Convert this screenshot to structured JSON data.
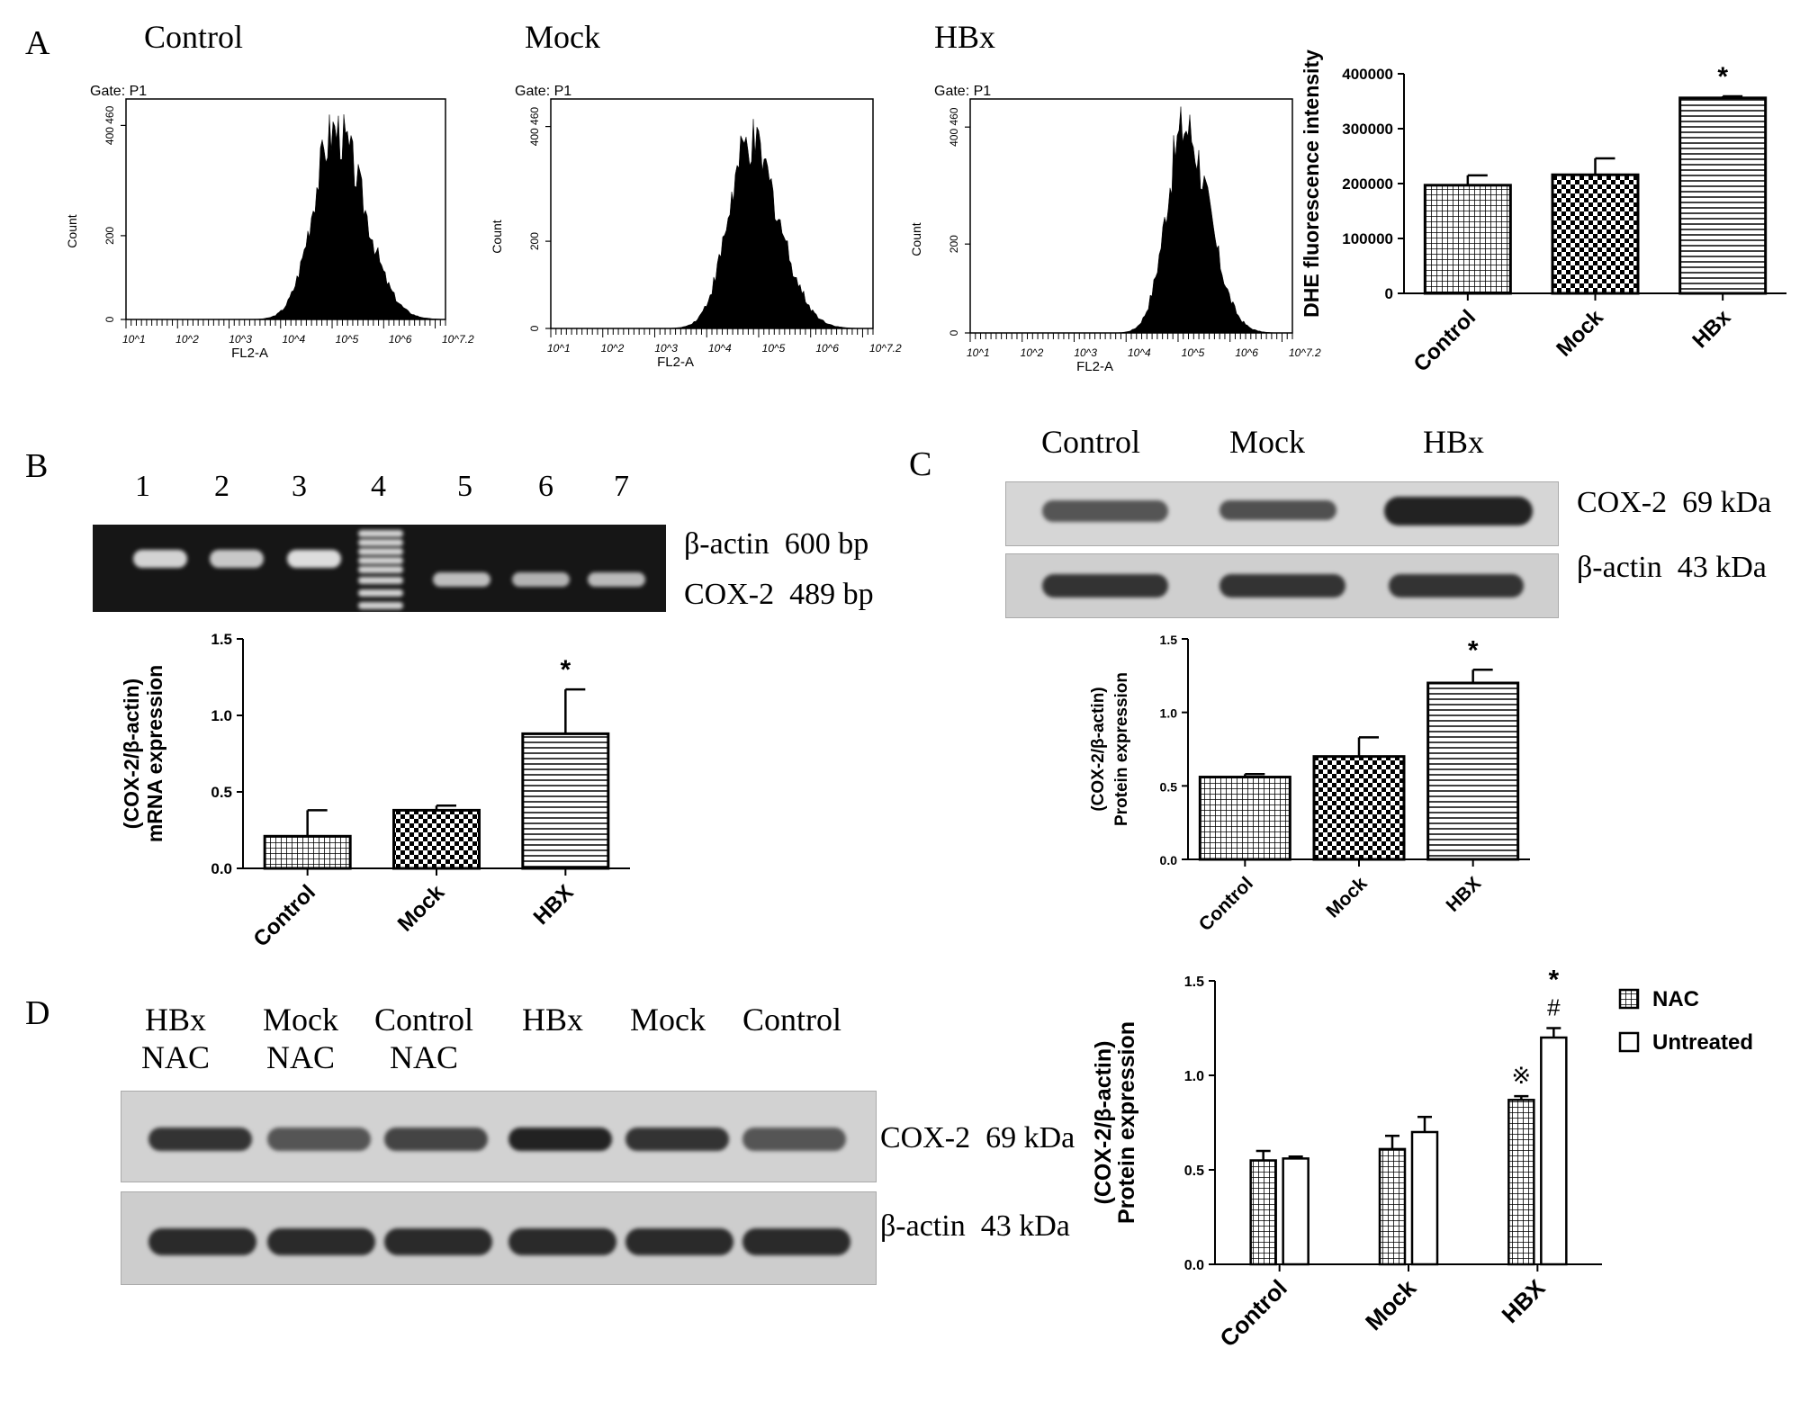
{
  "colors": {
    "ink": "#000000",
    "gel_bg": "#1a1a1a",
    "band_dark": "#2a2a2a",
    "blot_bg": "#d4d4d4"
  },
  "panel_a": {
    "letter": "A",
    "histograms": [
      {
        "condition": "Control",
        "gate": "Gate: P1",
        "xlabel": "FL2-A",
        "ylabel": "Count"
      },
      {
        "condition": "Mock",
        "gate": "Gate: P1",
        "xlabel": "FL2-A",
        "ylabel": "Count"
      },
      {
        "condition": "HBx",
        "gate": "Gate: P1",
        "xlabel": "FL2-A",
        "ylabel": "Count"
      }
    ],
    "hist_yticks": [
      "0",
      "200",
      "400 460"
    ],
    "hist_xticks": [
      "10^1",
      "10^2",
      "10^3",
      "10^4",
      "10^5",
      "10^6",
      "10^7.2"
    ]
  },
  "panel_b": {
    "letter": "B",
    "lanes": [
      "1",
      "2",
      "3",
      "4",
      "5",
      "6",
      "7"
    ],
    "band_labels": [
      {
        "name": "β-actin",
        "size": "600 bp"
      },
      {
        "name": "COX-2",
        "size": "489 bp"
      }
    ]
  },
  "panel_c": {
    "letter": "C",
    "lanes": [
      "Control",
      "Mock",
      "HBx"
    ],
    "band_labels": [
      {
        "name": "COX-2",
        "size": "69 kDa"
      },
      {
        "name": "β-actin",
        "size": "43 kDa"
      }
    ]
  },
  "panel_d": {
    "letter": "D",
    "lanes": [
      {
        "line1": "HBx",
        "line2": "NAC"
      },
      {
        "line1": "Mock",
        "line2": "NAC"
      },
      {
        "line1": "Control",
        "line2": "NAC"
      },
      {
        "line1": "HBx",
        "line2": ""
      },
      {
        "line1": "Mock",
        "line2": ""
      },
      {
        "line1": "Control",
        "line2": ""
      }
    ],
    "band_labels": [
      {
        "name": "COX-2",
        "size": "69 kDa"
      },
      {
        "name": "β-actin",
        "size": "43 kDa"
      }
    ]
  },
  "chart_data": [
    {
      "id": "dhe",
      "type": "bar",
      "ylabel": "DHE fluorescence intensity",
      "categories": [
        "Control",
        "Mock",
        "HBx"
      ],
      "values": [
        197000,
        216000,
        356000
      ],
      "errors": [
        18000,
        30000,
        3000
      ],
      "patterns": [
        "grid",
        "checker",
        "hlines"
      ],
      "sig": [
        "",
        "",
        "*"
      ],
      "ylim": [
        0,
        400000
      ],
      "yticks": [
        0,
        100000,
        200000,
        300000,
        400000
      ]
    },
    {
      "id": "mrna",
      "type": "bar",
      "ylabel": [
        "mRNA expression",
        "(COX-2/β-actin)"
      ],
      "categories": [
        "Control",
        "Mock",
        "HBX"
      ],
      "values": [
        0.21,
        0.38,
        0.88
      ],
      "errors": [
        0.17,
        0.03,
        0.29
      ],
      "patterns": [
        "grid",
        "checker",
        "hlines"
      ],
      "sig": [
        "",
        "",
        "*"
      ],
      "ylim": [
        0,
        1.5
      ],
      "yticks": [
        "0.0",
        "0.5",
        "1.0",
        "1.5"
      ]
    },
    {
      "id": "protein_c",
      "type": "bar",
      "ylabel": [
        "Protein expression",
        "(COX-2/β-actin)"
      ],
      "categories": [
        "Control",
        "Mock",
        "HBX"
      ],
      "values": [
        0.56,
        0.7,
        1.2
      ],
      "errors": [
        0.02,
        0.13,
        0.09
      ],
      "patterns": [
        "grid",
        "checker",
        "hlines"
      ],
      "sig": [
        "",
        "",
        "*"
      ],
      "ylim": [
        0,
        1.5
      ],
      "yticks": [
        "0.0",
        "0.5",
        "1.0",
        "1.5"
      ]
    },
    {
      "id": "protein_d",
      "type": "bar",
      "ylabel": [
        "Protein expression",
        "(COX-2/β-actin)"
      ],
      "categories": [
        "Control",
        "Mock",
        "HBX"
      ],
      "series": [
        {
          "name": "NAC",
          "values": [
            0.55,
            0.61,
            0.87
          ],
          "errors": [
            0.05,
            0.07,
            0.02
          ],
          "sig": [
            "",
            "",
            "※"
          ]
        },
        {
          "name": "Untreated",
          "values": [
            0.56,
            0.7,
            1.2
          ],
          "errors": [
            0.01,
            0.08,
            0.05
          ],
          "sig": [
            "",
            "",
            "#"
          ]
        }
      ],
      "extra_sig": "*",
      "ylim": [
        0,
        1.5
      ],
      "yticks": [
        "0.0",
        "0.5",
        "1.0",
        "1.5"
      ],
      "legend": "top-right"
    }
  ]
}
